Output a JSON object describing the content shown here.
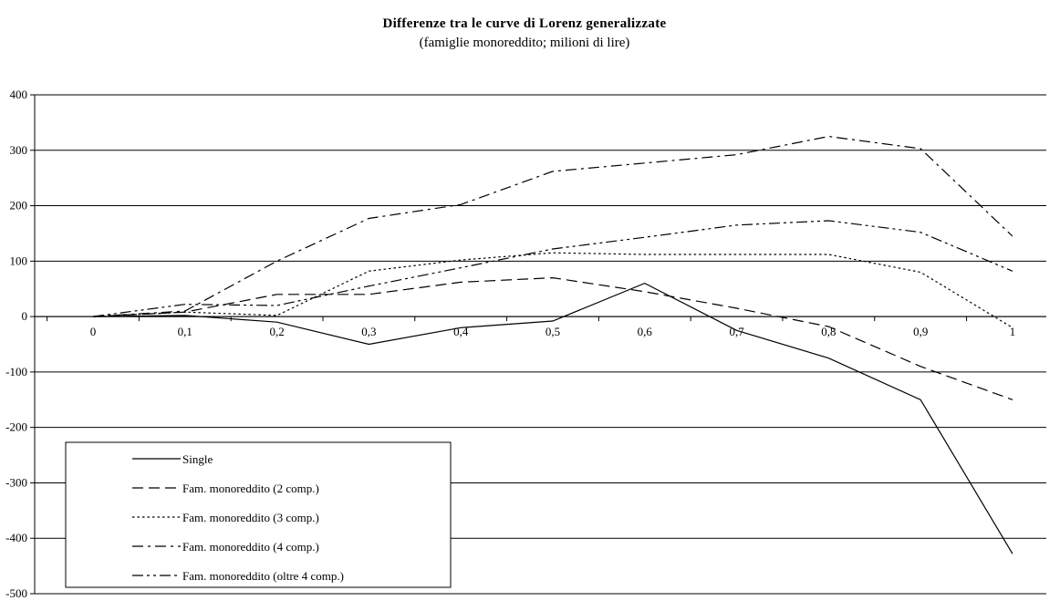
{
  "chart_data": {
    "type": "line",
    "title": "Differenze tra le curve di Lorenz generalizzate",
    "subtitle": "(famiglie monoreddito; milioni di lire)",
    "xlabel": "",
    "ylabel": "",
    "x": [
      0,
      0.1,
      0.2,
      0.3,
      0.4,
      0.5,
      0.6,
      0.7,
      0.8,
      0.9,
      1
    ],
    "x_tick_labels": [
      "0",
      "0,1",
      "0,2",
      "0,3",
      "0,4",
      "0,5",
      "0,6",
      "0,7",
      "0,8",
      "0,9",
      "1"
    ],
    "ylim": [
      -500,
      400
    ],
    "y_ticks": [
      400,
      300,
      200,
      100,
      0,
      -100,
      -200,
      -300,
      -400,
      -500
    ],
    "y_tick_labels": [
      "400",
      "300",
      "200",
      "100",
      "0",
      "-100",
      "-200",
      "-300",
      "-400",
      "-500"
    ],
    "grid": "horizontal",
    "legend_position": "bottom-left",
    "series": [
      {
        "name": "Single",
        "dash": "solid",
        "values": [
          0,
          2,
          -10,
          -50,
          -20,
          -8,
          60,
          -25,
          -75,
          -150,
          -428
        ]
      },
      {
        "name": "Fam. monoreddito (2 comp.)",
        "dash": "dashed",
        "values": [
          0,
          8,
          40,
          40,
          62,
          70,
          45,
          15,
          -18,
          -90,
          -150
        ]
      },
      {
        "name": "Fam. monoreddito (3 comp.)",
        "dash": "dotted",
        "values": [
          0,
          8,
          2,
          82,
          102,
          115,
          112,
          112,
          112,
          80,
          -20
        ]
      },
      {
        "name": "Fam. monoreddito (4 comp.)",
        "dash": "dashdot",
        "values": [
          0,
          10,
          100,
          177,
          202,
          262,
          277,
          292,
          325,
          303,
          145
        ]
      },
      {
        "name": "Fam. monoreddito (oltre 4 comp.)",
        "dash": "dashdotdot",
        "values": [
          0,
          22,
          20,
          55,
          88,
          122,
          143,
          165,
          173,
          152,
          82
        ]
      }
    ]
  }
}
